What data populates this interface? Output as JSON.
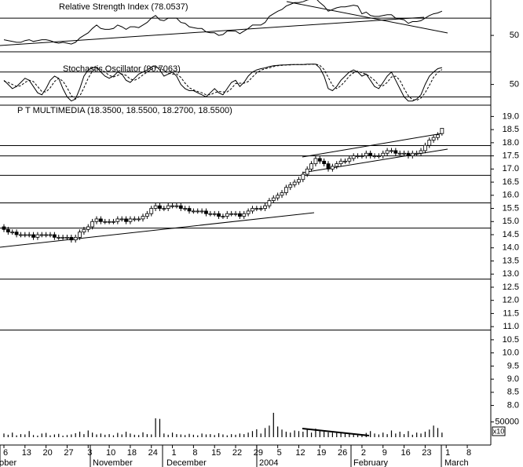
{
  "chart_data": [
    {
      "type": "line",
      "title": "Relative Strength Index (78.0537)",
      "ylim": [
        31,
        91
      ],
      "yticks": [
        50
      ],
      "levels": [
        70
      ],
      "series": [
        {
          "color": "#000000",
          "style": "solid",
          "values": [
            45,
            44,
            43,
            42,
            42,
            44,
            45,
            43,
            44,
            45,
            45,
            44,
            42,
            41,
            42,
            41,
            40,
            42,
            47,
            50,
            53,
            58,
            62,
            58,
            57,
            57,
            58,
            62,
            60,
            57,
            60,
            60,
            59,
            62,
            65,
            70,
            73,
            68,
            67,
            70,
            70,
            70,
            65,
            64,
            60,
            59,
            58,
            58,
            54,
            53,
            53,
            50,
            51,
            55,
            55,
            55,
            52,
            55,
            58,
            62,
            62,
            62,
            65,
            72,
            75,
            78,
            80,
            84,
            86,
            88,
            88,
            89,
            91,
            92,
            93,
            88,
            84,
            78,
            80,
            82,
            83,
            83,
            84,
            85,
            84,
            75,
            77,
            73,
            72,
            72,
            73,
            74,
            74,
            70,
            69,
            68,
            64,
            66,
            66,
            67,
            70,
            73,
            75,
            76,
            78.0537,
            null,
            null,
            null,
            null,
            null,
            null
          ]
        }
      ]
    },
    {
      "type": "line",
      "title": "Stochastic Oscillator (90.7063)",
      "ylim": [
        0,
        125
      ],
      "yticks": [
        50
      ],
      "levels": [
        80,
        20
      ],
      "series": [
        {
          "color": "#000000",
          "style": "solid",
          "values": [
            60,
            50,
            40,
            45,
            55,
            65,
            60,
            45,
            30,
            25,
            40,
            60,
            70,
            65,
            40,
            20,
            10,
            15,
            40,
            70,
            85,
            90,
            92,
            80,
            70,
            65,
            70,
            80,
            75,
            60,
            55,
            65,
            75,
            80,
            85,
            92,
            95,
            85,
            70,
            75,
            80,
            70,
            50,
            40,
            35,
            35,
            30,
            25,
            20,
            30,
            40,
            30,
            25,
            40,
            55,
            60,
            45,
            55,
            70,
            80,
            85,
            88,
            90,
            93,
            95,
            96,
            97,
            97,
            98,
            98,
            98,
            98,
            99,
            99,
            99,
            90,
            70,
            40,
            35,
            45,
            60,
            70,
            80,
            85,
            80,
            70,
            75,
            60,
            45,
            40,
            55,
            70,
            80,
            60,
            40,
            20,
            10,
            10,
            15,
            25,
            50,
            70,
            80,
            88,
            90.7063,
            null,
            null,
            null,
            null,
            null,
            null
          ]
        },
        {
          "color": "#000000",
          "style": "dashed",
          "values": [
            58,
            55,
            50,
            45,
            47,
            55,
            60,
            57,
            45,
            33,
            32,
            42,
            57,
            65,
            58,
            42,
            23,
            15,
            22,
            42,
            65,
            82,
            89,
            87,
            80,
            72,
            68,
            72,
            75,
            72,
            63,
            60,
            65,
            73,
            80,
            86,
            91,
            91,
            83,
            77,
            75,
            75,
            67,
            53,
            42,
            37,
            33,
            30,
            25,
            25,
            30,
            33,
            32,
            32,
            40,
            52,
            53,
            53,
            57,
            68,
            78,
            84,
            88,
            90,
            93,
            95,
            96,
            97,
            97,
            98,
            98,
            98,
            98,
            99,
            99,
            96,
            86,
            67,
            48,
            40,
            47,
            58,
            70,
            78,
            82,
            78,
            75,
            68,
            60,
            48,
            47,
            55,
            68,
            70,
            60,
            40,
            23,
            13,
            12,
            17,
            30,
            48,
            67,
            79,
            86,
            null,
            null,
            null,
            null,
            null,
            null
          ]
        }
      ]
    },
    {
      "type": "candlestick",
      "title": "P T MULTIMEDIA (18.3500, 18.5500, 18.2700, 18.5500)",
      "ylim": [
        7.3,
        19.4
      ],
      "yticks": [
        {
          "value": 19,
          "label": "19.0"
        },
        18.5,
        {
          "value": 18,
          "label": "18.0"
        },
        17.5,
        {
          "value": 17,
          "label": "17.0"
        },
        16.5,
        {
          "value": 16,
          "label": "16.0"
        },
        15.5,
        {
          "value": 15,
          "label": "15.0"
        },
        14.5,
        {
          "value": 14,
          "label": "14.0"
        },
        13.5,
        {
          "value": 13,
          "label": "13.0"
        },
        12.5,
        {
          "value": 12,
          "label": "12.0"
        },
        11.5,
        {
          "value": 11,
          "label": "11.0"
        },
        10.5,
        {
          "value": 10,
          "label": "10.0"
        },
        9.5,
        {
          "value": 9,
          "label": "9.0"
        },
        8.5,
        {
          "value": 8,
          "label": "8.0"
        }
      ],
      "levels": [
        17.89,
        17.5,
        16.76,
        15.71,
        14.75,
        12.81,
        10.87
      ],
      "open": [
        14.8,
        14.7,
        14.6,
        14.6,
        14.5,
        14.5,
        14.5,
        14.5,
        14.4,
        14.5,
        14.5,
        14.5,
        14.5,
        14.4,
        14.4,
        14.4,
        14.4,
        14.3,
        14.4,
        14.6,
        14.7,
        14.8,
        15.0,
        15.1,
        15.0,
        15.0,
        15.0,
        15.0,
        15.1,
        15.1,
        15.0,
        15.1,
        15.1,
        15.1,
        15.2,
        15.3,
        15.5,
        15.6,
        15.5,
        15.5,
        15.6,
        15.6,
        15.6,
        15.5,
        15.5,
        15.4,
        15.4,
        15.4,
        15.4,
        15.3,
        15.3,
        15.3,
        15.2,
        15.2,
        15.3,
        15.3,
        15.3,
        15.2,
        15.3,
        15.4,
        15.5,
        15.5,
        15.5,
        15.6,
        15.8,
        15.9,
        16.0,
        16.1,
        16.3,
        16.4,
        16.5,
        16.6,
        16.8,
        17.0,
        17.2,
        17.4,
        17.3,
        17.2,
        17.0,
        17.1,
        17.2,
        17.3,
        17.3,
        17.4,
        17.5,
        17.5,
        17.5,
        17.6,
        17.5,
        17.5,
        17.5,
        17.6,
        17.7,
        17.7,
        17.6,
        17.6,
        17.6,
        17.5,
        17.6,
        17.6,
        17.7,
        17.9,
        18.1,
        18.2,
        18.35,
        null,
        null,
        null,
        null,
        null,
        null
      ],
      "high": [
        14.9,
        14.8,
        14.7,
        14.7,
        14.6,
        14.6,
        14.6,
        14.6,
        14.6,
        14.6,
        14.6,
        14.6,
        14.6,
        14.5,
        14.5,
        14.5,
        14.5,
        14.5,
        14.7,
        14.8,
        14.9,
        15.1,
        15.2,
        15.2,
        15.1,
        15.1,
        15.1,
        15.2,
        15.2,
        15.2,
        15.2,
        15.2,
        15.2,
        15.3,
        15.4,
        15.6,
        15.7,
        15.7,
        15.6,
        15.7,
        15.7,
        15.7,
        15.7,
        15.6,
        15.6,
        15.5,
        15.5,
        15.5,
        15.5,
        15.4,
        15.4,
        15.4,
        15.3,
        15.4,
        15.4,
        15.4,
        15.4,
        15.4,
        15.5,
        15.6,
        15.6,
        15.6,
        15.7,
        15.9,
        16.0,
        16.1,
        16.2,
        16.4,
        16.5,
        16.6,
        16.7,
        16.9,
        17.1,
        17.3,
        17.5,
        17.5,
        17.4,
        17.3,
        17.2,
        17.3,
        17.4,
        17.4,
        17.5,
        17.6,
        17.6,
        17.6,
        17.7,
        17.7,
        17.6,
        17.6,
        17.7,
        17.8,
        17.8,
        17.8,
        17.7,
        17.7,
        17.7,
        17.7,
        17.7,
        17.8,
        18.0,
        18.2,
        18.3,
        18.4,
        18.55,
        null,
        null,
        null,
        null,
        null,
        null
      ],
      "low": [
        14.6,
        14.5,
        14.5,
        14.4,
        14.4,
        14.4,
        14.4,
        14.3,
        14.3,
        14.4,
        14.4,
        14.4,
        14.3,
        14.3,
        14.3,
        14.3,
        14.2,
        14.2,
        14.3,
        14.5,
        14.6,
        14.7,
        14.9,
        14.9,
        14.9,
        14.9,
        14.9,
        14.9,
        15.0,
        14.9,
        14.9,
        15.0,
        15.0,
        15.0,
        15.1,
        15.2,
        15.4,
        15.4,
        15.4,
        15.4,
        15.5,
        15.5,
        15.4,
        15.4,
        15.3,
        15.3,
        15.3,
        15.3,
        15.2,
        15.2,
        15.2,
        15.1,
        15.1,
        15.1,
        15.2,
        15.2,
        15.1,
        15.1,
        15.2,
        15.3,
        15.4,
        15.4,
        15.4,
        15.5,
        15.7,
        15.8,
        15.9,
        16.0,
        16.2,
        16.3,
        16.4,
        16.5,
        16.7,
        16.9,
        17.1,
        17.2,
        17.1,
        16.9,
        16.9,
        17.0,
        17.1,
        17.2,
        17.2,
        17.3,
        17.4,
        17.4,
        17.4,
        17.4,
        17.4,
        17.4,
        17.4,
        17.5,
        17.6,
        17.5,
        17.5,
        17.5,
        17.4,
        17.4,
        17.5,
        17.5,
        17.6,
        17.8,
        18.0,
        18.1,
        18.27,
        null,
        null,
        null,
        null,
        null,
        null
      ],
      "close": [
        14.7,
        14.6,
        14.6,
        14.5,
        14.5,
        14.5,
        14.5,
        14.4,
        14.5,
        14.5,
        14.5,
        14.5,
        14.4,
        14.4,
        14.4,
        14.4,
        14.3,
        14.4,
        14.6,
        14.7,
        14.8,
        15.0,
        15.1,
        15.0,
        15.0,
        15.0,
        15.0,
        15.1,
        15.1,
        15.0,
        15.1,
        15.1,
        15.1,
        15.2,
        15.3,
        15.5,
        15.6,
        15.5,
        15.5,
        15.6,
        15.6,
        15.6,
        15.5,
        15.5,
        15.4,
        15.4,
        15.4,
        15.4,
        15.3,
        15.3,
        15.3,
        15.2,
        15.2,
        15.3,
        15.3,
        15.3,
        15.2,
        15.3,
        15.4,
        15.5,
        15.5,
        15.5,
        15.6,
        15.8,
        15.9,
        16.0,
        16.1,
        16.3,
        16.4,
        16.5,
        16.6,
        16.8,
        17.0,
        17.2,
        17.4,
        17.3,
        17.2,
        17.0,
        17.1,
        17.2,
        17.3,
        17.3,
        17.4,
        17.5,
        17.5,
        17.5,
        17.6,
        17.5,
        17.5,
        17.5,
        17.6,
        17.7,
        17.7,
        17.6,
        17.6,
        17.6,
        17.5,
        17.6,
        17.6,
        17.7,
        17.9,
        18.1,
        18.2,
        18.3,
        18.55,
        null,
        null,
        null,
        null,
        null,
        null
      ]
    },
    {
      "type": "bar",
      "ylim": [
        0,
        85000
      ],
      "yticks": [
        50000
      ],
      "unit_label": "x10",
      "color": "#000000",
      "values": [
        12000,
        8000,
        15000,
        6000,
        10000,
        9000,
        20000,
        7000,
        5000,
        12000,
        14000,
        6000,
        9000,
        11000,
        5000,
        7000,
        9000,
        13000,
        18000,
        10000,
        22000,
        15000,
        9000,
        12000,
        8000,
        10000,
        6000,
        14000,
        9000,
        18000,
        12000,
        8000,
        7000,
        16000,
        10000,
        9000,
        62000,
        60000,
        12000,
        8000,
        15000,
        10000,
        9000,
        7000,
        11000,
        8000,
        6000,
        12000,
        9000,
        10000,
        7000,
        13000,
        9000,
        6000,
        10000,
        8000,
        12000,
        10000,
        15000,
        20000,
        26000,
        12000,
        30000,
        38000,
        80000,
        35000,
        25000,
        18000,
        15000,
        22000,
        20000,
        18000,
        25000,
        15000,
        28000,
        20000,
        18000,
        16000,
        15000,
        14000,
        13000,
        12000,
        11000,
        10000,
        9000,
        8000,
        14000,
        20000,
        12000,
        9000,
        15000,
        10000,
        22000,
        12000,
        18000,
        10000,
        20000,
        8000,
        15000,
        12000,
        18000,
        25000,
        38000,
        30000,
        15000,
        null,
        null,
        null,
        null,
        null,
        null
      ]
    }
  ],
  "x_axis": {
    "categories": [
      "6",
      null,
      null,
      null,
      null,
      "13",
      null,
      null,
      null,
      null,
      "20",
      null,
      null,
      null,
      null,
      "27",
      null,
      null,
      null,
      null,
      "3",
      null,
      null,
      null,
      null,
      "10",
      null,
      null,
      null,
      null,
      "18",
      null,
      null,
      null,
      null,
      "24",
      null,
      null,
      null,
      null,
      "1",
      null,
      null,
      null,
      null,
      "8",
      null,
      null,
      null,
      null,
      "15",
      null,
      null,
      null,
      null,
      "22",
      null,
      null,
      null,
      null,
      "29",
      null,
      null,
      null,
      null,
      "5",
      null,
      null,
      null,
      null,
      "12",
      null,
      null,
      null,
      null,
      "19",
      null,
      null,
      null,
      null,
      "26",
      null,
      null,
      null,
      null,
      "2",
      null,
      null,
      null,
      null,
      "9",
      null,
      null,
      null,
      null,
      "16",
      null,
      null,
      null,
      null,
      "23",
      null,
      null,
      null,
      null,
      "1",
      null,
      null,
      null,
      null,
      "8"
    ],
    "months": [
      "October",
      "November",
      "December",
      "2004",
      "February",
      "March"
    ]
  }
}
